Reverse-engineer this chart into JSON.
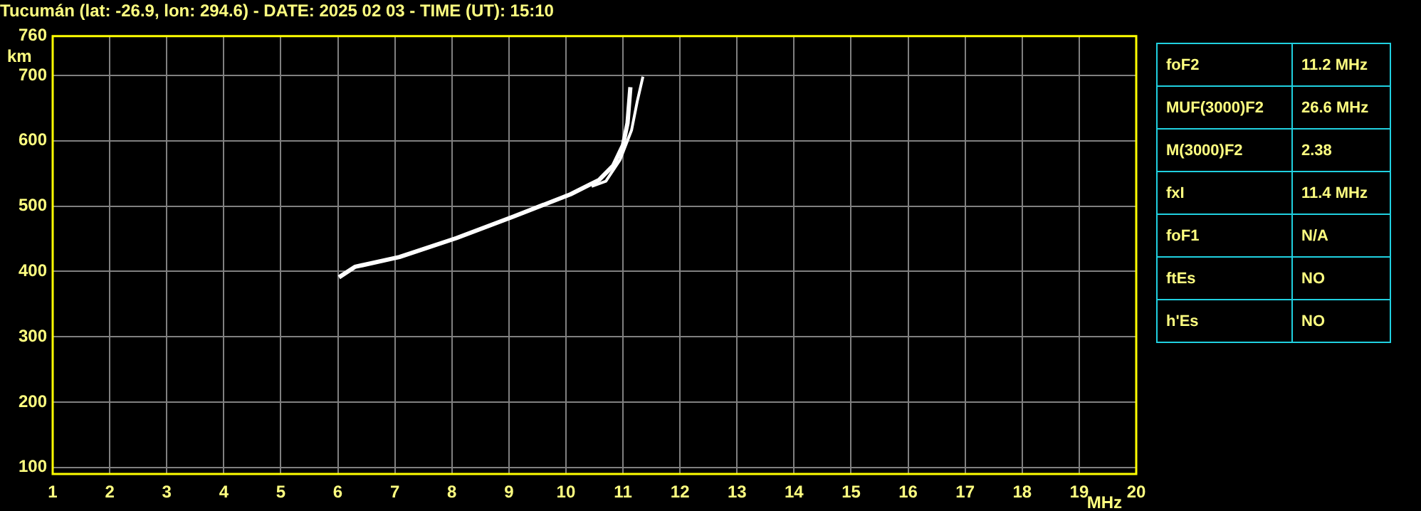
{
  "chart_data": [
    {
      "type": "line",
      "title": "Tucumán (lat: -26.9, lon: 294.6) - DATE: 2025 02 03 - TIME (UT): 15:10",
      "xlabel": "MHz",
      "ylabel": "km",
      "series": [
        {
          "color": "#ffffff",
          "x": [
            6.02,
            6.3,
            7.08,
            8.08,
            9.08,
            10.08,
            10.58,
            10.83,
            11.0,
            11.08,
            11.13
          ],
          "values": [
            391,
            407,
            422,
            451,
            484,
            518,
            540,
            562,
            593,
            627,
            682
          ]
        },
        {
          "color": "#ffffff",
          "x": [
            10.45,
            10.7,
            10.95,
            11.15,
            11.25,
            11.35
          ],
          "values": [
            530,
            538,
            571,
            616,
            660,
            698
          ]
        }
      ],
      "xlim": [
        1,
        20
      ],
      "xticks": [
        1,
        2,
        3,
        4,
        5,
        6,
        7,
        8,
        9,
        10,
        11,
        12,
        13,
        14,
        15,
        16,
        17,
        18,
        19,
        20
      ],
      "ylim": [
        90,
        760
      ],
      "yticks": [
        100,
        200,
        300,
        400,
        500,
        600,
        700,
        760
      ],
      "grid": true,
      "legend": false,
      "marker": "none",
      "line_style": "solid"
    },
    {
      "type": "other",
      "annotations": [
        "foF2",
        "11.2 MHz",
        "MUF(3000)F2",
        "26.6 MHz",
        "M(3000)F2",
        "2.38",
        "fxI",
        "11.4 MHz",
        "foF1",
        "N/A",
        "ftEs",
        "NO",
        "h'Es",
        "NO"
      ]
    }
  ]
}
